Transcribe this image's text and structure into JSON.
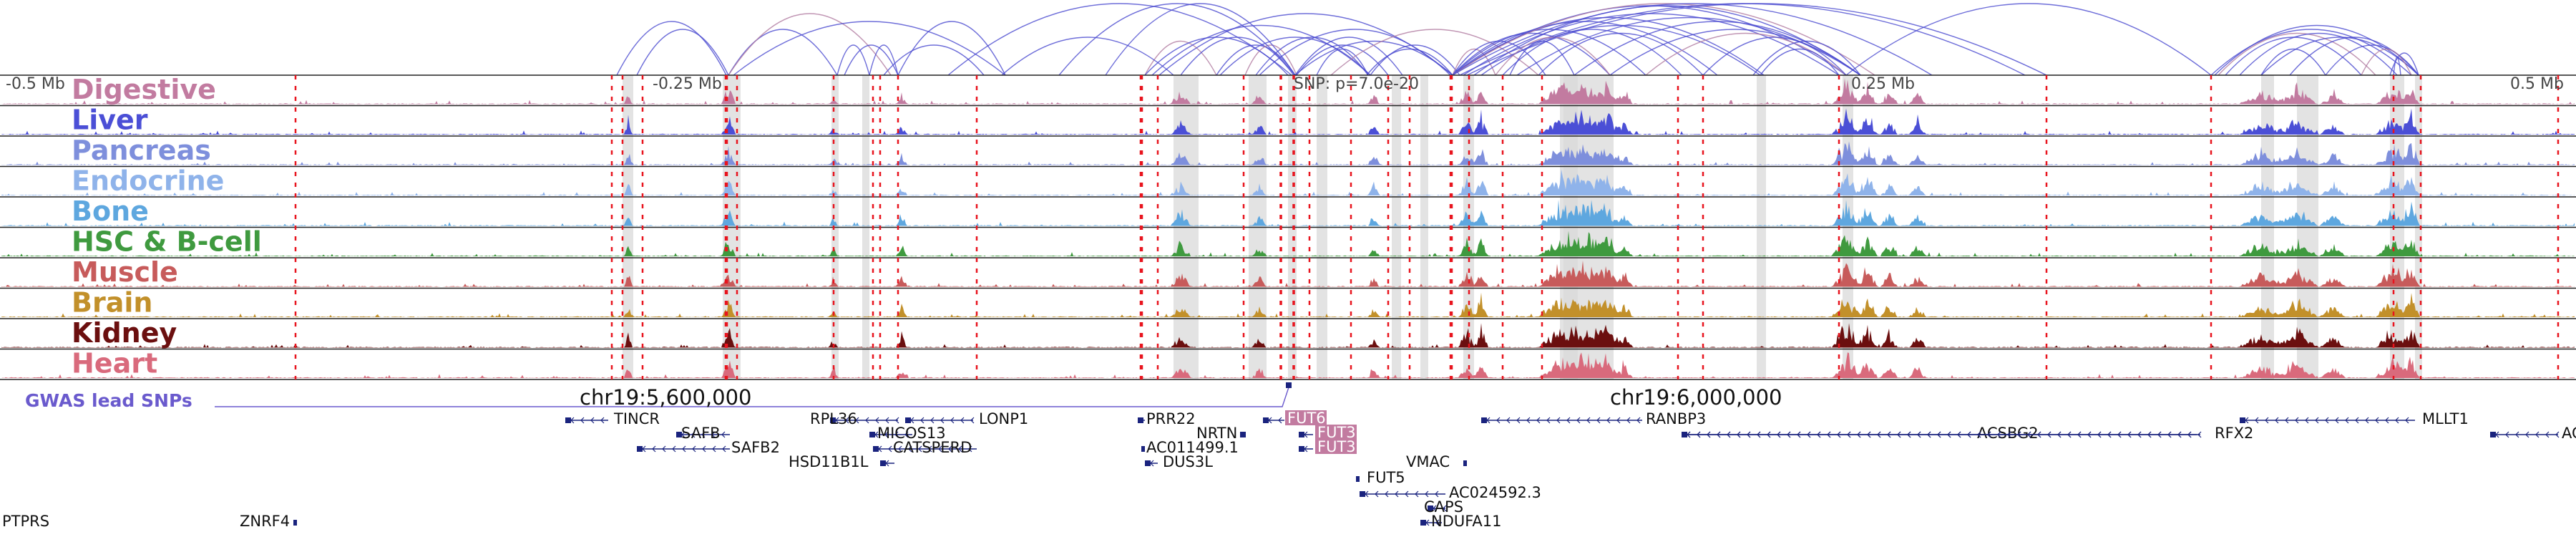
{
  "coord_axis": {
    "tick_labels": [
      "-0.5 Mb",
      "-0.25 Mb",
      "0.25 Mb",
      "0.5 Mb"
    ],
    "snp_label": "SNP: p=7.0e-20"
  },
  "tracks": [
    {
      "label": "Digestive",
      "color": "#c27ba0"
    },
    {
      "label": "Liver",
      "color": "#4b4fd6"
    },
    {
      "label": "Pancreas",
      "color": "#7e8fdc"
    },
    {
      "label": "Endocrine",
      "color": "#8fb3ea"
    },
    {
      "label": "Bone",
      "color": "#5ea7df"
    },
    {
      "label": "HSC & B-cell",
      "color": "#3f9a3f"
    },
    {
      "label": "Muscle",
      "color": "#c75b5b"
    },
    {
      "label": "Brain",
      "color": "#c2902a"
    },
    {
      "label": "Kidney",
      "color": "#6b0f0f"
    },
    {
      "label": "Heart",
      "color": "#d96a7c"
    }
  ],
  "gwas": {
    "label": "GWAS lead SNPs",
    "color": "#6a5acd"
  },
  "chrom_labels": [
    "chr19:5,600,000",
    "chr19:6,000,000"
  ],
  "genes": [
    {
      "name": "TINCR"
    },
    {
      "name": "SAFB"
    },
    {
      "name": "SAFB2"
    },
    {
      "name": "RPL36"
    },
    {
      "name": "MICOS13"
    },
    {
      "name": "CATSPERD"
    },
    {
      "name": "LONP1"
    },
    {
      "name": "HSD11B1L"
    },
    {
      "name": "PRR22"
    },
    {
      "name": "NRTN"
    },
    {
      "name": "AC011499.1"
    },
    {
      "name": "DUS3L"
    },
    {
      "name": "FUT6",
      "highlight": true
    },
    {
      "name": "FUT3",
      "highlight": true
    },
    {
      "name": "FUT3",
      "highlight": true
    },
    {
      "name": "FUT5"
    },
    {
      "name": "VMAC"
    },
    {
      "name": "AC024592.3"
    },
    {
      "name": "CAPS"
    },
    {
      "name": "NDUFA11"
    },
    {
      "name": "RANBP3"
    },
    {
      "name": "ACSBG2"
    },
    {
      "name": "RFX2"
    },
    {
      "name": "MLLT1"
    },
    {
      "name": "AC"
    },
    {
      "name": "PTPRS"
    },
    {
      "name": "ZNRF4"
    }
  ],
  "colors": {
    "arc": "#4a4ad0",
    "arc_alt": "#b07aa0",
    "marker": "#e8141e",
    "highlight": "#d9d9d9",
    "gene": "#1a237e",
    "gene_highlight_bg": "#c27ba0"
  }
}
